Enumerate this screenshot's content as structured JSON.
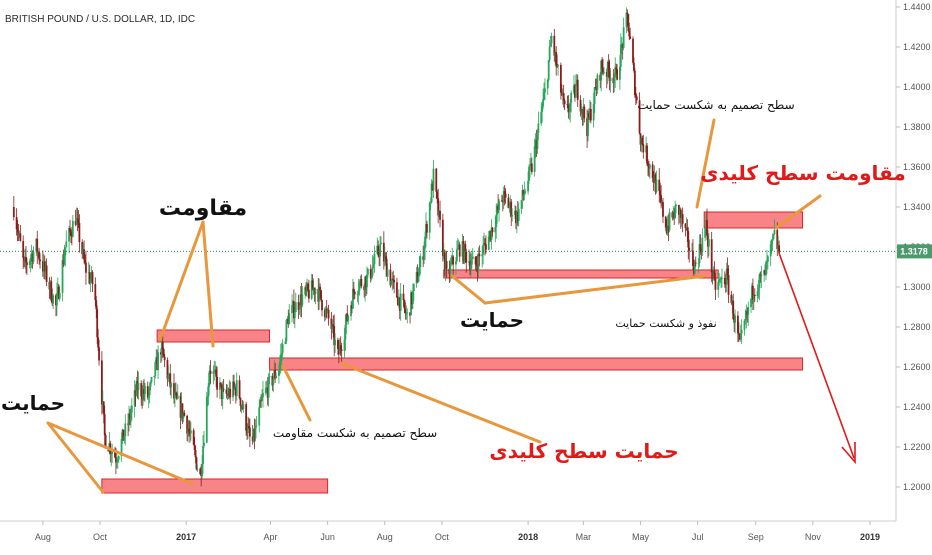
{
  "header": {
    "title": "BRITISH POUND / U.S. DOLLAR, 1D, IDC"
  },
  "chart_data": {
    "type": "candlestick",
    "title": "BRITISH POUND / U.S. DOLLAR, 1D, IDC",
    "y_ticks": [
      "1.4400",
      "1.4200",
      "1.4000",
      "1.3800",
      "1.3600",
      "1.3400",
      "1.3200",
      "1.3000",
      "1.2800",
      "1.2600",
      "1.2400",
      "1.2200",
      "1.2000"
    ],
    "ylim": [
      1.188,
      1.446
    ],
    "x_ticks": [
      {
        "label": "Aug",
        "date": "2016-08-01",
        "bold": false
      },
      {
        "label": "Oct",
        "date": "2016-10-01",
        "bold": false
      },
      {
        "label": "2017",
        "date": "2017-01-01",
        "bold": true
      },
      {
        "label": "Apr",
        "date": "2017-04-01",
        "bold": false
      },
      {
        "label": "Jun",
        "date": "2017-06-01",
        "bold": false
      },
      {
        "label": "Aug",
        "date": "2017-08-01",
        "bold": false
      },
      {
        "label": "Oct",
        "date": "2017-10-01",
        "bold": false
      },
      {
        "label": "2018",
        "date": "2018-01-01",
        "bold": true
      },
      {
        "label": "Mar",
        "date": "2018-03-01",
        "bold": false
      },
      {
        "label": "May",
        "date": "2018-05-01",
        "bold": false
      },
      {
        "label": "Jul",
        "date": "2018-07-01",
        "bold": false
      },
      {
        "label": "Sep",
        "date": "2018-09-01",
        "bold": false
      },
      {
        "label": "Nov",
        "date": "2018-11-01",
        "bold": false
      },
      {
        "label": "2019",
        "date": "2019-01-01",
        "bold": true
      }
    ],
    "last_price": "1.3178",
    "price_path": [
      [
        "2016-07-01",
        1.34
      ],
      [
        "2016-07-12",
        1.31
      ],
      [
        "2016-07-25",
        1.32
      ],
      [
        "2016-08-05",
        1.305
      ],
      [
        "2016-08-15",
        1.29
      ],
      [
        "2016-08-25",
        1.32
      ],
      [
        "2016-09-05",
        1.335
      ],
      [
        "2016-09-15",
        1.31
      ],
      [
        "2016-09-25",
        1.3
      ],
      [
        "2016-10-06",
        1.225
      ],
      [
        "2016-10-18",
        1.215
      ],
      [
        "2016-10-30",
        1.23
      ],
      [
        "2016-11-10",
        1.25
      ],
      [
        "2016-11-22",
        1.245
      ],
      [
        "2016-12-05",
        1.27
      ],
      [
        "2016-12-18",
        1.245
      ],
      [
        "2016-12-31",
        1.235
      ],
      [
        "2017-01-16",
        1.205
      ],
      [
        "2017-01-26",
        1.26
      ],
      [
        "2017-02-10",
        1.245
      ],
      [
        "2017-02-25",
        1.25
      ],
      [
        "2017-03-12",
        1.22
      ],
      [
        "2017-03-24",
        1.245
      ],
      [
        "2017-04-10",
        1.26
      ],
      [
        "2017-04-20",
        1.285
      ],
      [
        "2017-05-05",
        1.295
      ],
      [
        "2017-05-20",
        1.3
      ],
      [
        "2017-06-05",
        1.28
      ],
      [
        "2017-06-12",
        1.265
      ],
      [
        "2017-06-30",
        1.3
      ],
      [
        "2017-07-15",
        1.305
      ],
      [
        "2017-07-27",
        1.32
      ],
      [
        "2017-08-10",
        1.3
      ],
      [
        "2017-08-25",
        1.285
      ],
      [
        "2017-09-10",
        1.315
      ],
      [
        "2017-09-22",
        1.355
      ],
      [
        "2017-10-06",
        1.305
      ],
      [
        "2017-10-20",
        1.32
      ],
      [
        "2017-11-05",
        1.31
      ],
      [
        "2017-11-20",
        1.325
      ],
      [
        "2017-12-05",
        1.345
      ],
      [
        "2017-12-20",
        1.335
      ],
      [
        "2018-01-05",
        1.36
      ],
      [
        "2018-01-20",
        1.4
      ],
      [
        "2018-01-26",
        1.425
      ],
      [
        "2018-02-10",
        1.385
      ],
      [
        "2018-02-22",
        1.4
      ],
      [
        "2018-03-05",
        1.38
      ],
      [
        "2018-03-20",
        1.41
      ],
      [
        "2018-04-05",
        1.405
      ],
      [
        "2018-04-17",
        1.435
      ],
      [
        "2018-05-01",
        1.375
      ],
      [
        "2018-05-15",
        1.355
      ],
      [
        "2018-05-29",
        1.33
      ],
      [
        "2018-06-10",
        1.34
      ],
      [
        "2018-06-28",
        1.31
      ],
      [
        "2018-07-10",
        1.33
      ],
      [
        "2018-07-19",
        1.3
      ],
      [
        "2018-08-01",
        1.305
      ],
      [
        "2018-08-15",
        1.27
      ],
      [
        "2018-08-30",
        1.3
      ],
      [
        "2018-09-10",
        1.305
      ],
      [
        "2018-09-21",
        1.325
      ],
      [
        "2018-09-26",
        1.3178
      ]
    ],
    "zones": [
      {
        "name": "support-zone-1",
        "x0": "2016-10-03",
        "x1": "2017-06-01",
        "y0": 1.197,
        "y1": 1.204
      },
      {
        "name": "resistance-zone-1",
        "x0": "2016-12-01",
        "x1": "2017-03-31",
        "y0": 1.2725,
        "y1": 1.2785
      },
      {
        "name": "key-support-zone",
        "x0": "2017-03-31",
        "x1": "2018-10-21",
        "y0": 1.2585,
        "y1": 1.2645
      },
      {
        "name": "support-zone-2",
        "x0": "2017-10-03",
        "x1": "2018-07-23",
        "y0": 1.3045,
        "y1": 1.3085
      },
      {
        "name": "key-resistance-zone",
        "x0": "2018-07-08",
        "x1": "2018-10-21",
        "y0": 1.3295,
        "y1": 1.3375
      }
    ]
  },
  "annotations": {
    "resistance": "مقاومت",
    "support_left": "حمایت",
    "support_mid": "حمایت",
    "decision_break_resistance": "سطح تصمیم به شکست مقاومت",
    "key_level_support": "حمایت سطح کلیدی",
    "decision_break_support": "سطح تصمیم به شکست حمایت",
    "key_level_resistance": "مقاومت سطح کلیدی",
    "penetration_break_support": "نفوذ و شکست حمایت"
  },
  "colors": {
    "up_candle": "#26a65b",
    "down_candle": "#8b1c1c",
    "zone_fill": "#f7777a",
    "zone_stroke": "#d9262b",
    "arrow_orange": "#e8973c",
    "red_text": "#e11919",
    "price_label_bg": "#4c9a6c"
  }
}
